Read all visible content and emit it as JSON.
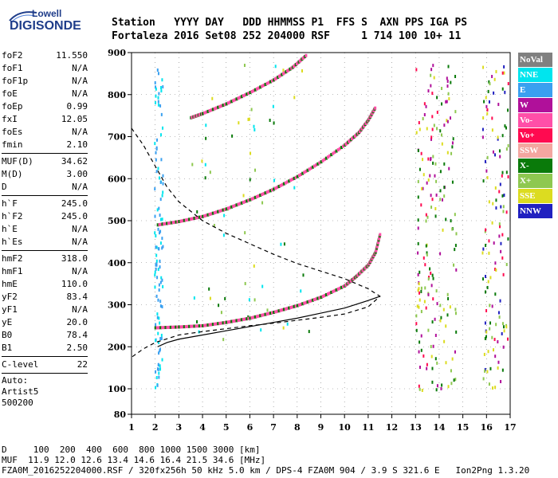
{
  "logo": {
    "line1": "Lowell",
    "line2": "DIGISONDE"
  },
  "header": {
    "line1": "Station   YYYY DAY   DDD HHMMSS P1  FFS S  AXN PPS IGA PS",
    "line2": "Fortaleza 2016 Set08 252 204000 RSF     1 714 100 10+ 11"
  },
  "params": [
    {
      "k": "foF2",
      "v": "11.550"
    },
    {
      "k": "foF1",
      "v": "N/A"
    },
    {
      "k": "foF1p",
      "v": "N/A"
    },
    {
      "k": "foE",
      "v": "N/A"
    },
    {
      "k": "foEp",
      "v": "0.99"
    },
    {
      "k": "fxI",
      "v": "12.05"
    },
    {
      "k": "foEs",
      "v": "N/A"
    },
    {
      "k": "fmin",
      "v": "2.10"
    },
    {
      "sep": true
    },
    {
      "k": "MUF(D)",
      "v": "34.62"
    },
    {
      "k": "M(D)",
      "v": "3.00"
    },
    {
      "k": "D",
      "v": "N/A"
    },
    {
      "sep": true
    },
    {
      "k": "h`F",
      "v": "245.0"
    },
    {
      "k": "h`F2",
      "v": "245.0"
    },
    {
      "k": "h`E",
      "v": "N/A"
    },
    {
      "k": "h`Es",
      "v": "N/A"
    },
    {
      "sep": true
    },
    {
      "k": "hmF2",
      "v": "318.0"
    },
    {
      "k": "hmF1",
      "v": "N/A"
    },
    {
      "k": "hmE",
      "v": "110.0"
    },
    {
      "k": "yF2",
      "v": "83.4"
    },
    {
      "k": "yF1",
      "v": "N/A"
    },
    {
      "k": "yE",
      "v": "20.0"
    },
    {
      "k": "B0",
      "v": "78.4"
    },
    {
      "k": "B1",
      "v": "2.50"
    },
    {
      "sep": true
    },
    {
      "k": "C-level",
      "v": "22"
    },
    {
      "sep": true
    }
  ],
  "misc": {
    "auto": "Auto:",
    "artist": "Artist5",
    "code": "500200"
  },
  "legend": [
    {
      "label": "NoVal",
      "color": "#808080"
    },
    {
      "label": "NNE",
      "color": "#00e5ee"
    },
    {
      "label": "E",
      "color": "#3aa0f0"
    },
    {
      "label": "W",
      "color": "#b0109a"
    },
    {
      "label": "Vo-",
      "color": "#ff4fa8"
    },
    {
      "label": "Vo+",
      "color": "#ff0a50"
    },
    {
      "label": "SSW",
      "color": "#f4a6a0"
    },
    {
      "label": "X-",
      "color": "#0a7a0a"
    },
    {
      "label": "X+",
      "color": "#8ec850"
    },
    {
      "label": "SSE",
      "color": "#dcdc20"
    },
    {
      "label": "NNW",
      "color": "#2020c0"
    }
  ],
  "footer": {
    "line1": "D     100  200  400  600  800 1000 1500 3000 [km]",
    "line2": "MUF  11.9 12.0 12.6 13.4 14.6 16.4 21.5 34.6 [MHz]",
    "line3": "FZA0M_2016252204000.RSF / 320fx256h 50 kHz 5.0 km / DPS-4 FZA0M 904 / 3.9 S 321.6 E   Ion2Png 1.3.20"
  },
  "chart_data": {
    "type": "scatter",
    "xlim": [
      1,
      17
    ],
    "ylim": [
      80,
      900
    ],
    "x_ticks": [
      1,
      2,
      3,
      4,
      5,
      6,
      7,
      8,
      9,
      10,
      11,
      12,
      13,
      14,
      15,
      16,
      17
    ],
    "y_ticks": [
      80,
      100,
      200,
      300,
      400,
      500,
      600,
      700,
      800,
      900
    ],
    "grid": true,
    "series": [
      {
        "color": "#ff4fa8",
        "points": [
          [
            2.0,
            245
          ],
          [
            3,
            247
          ],
          [
            4,
            250
          ],
          [
            5,
            258
          ],
          [
            6,
            268
          ],
          [
            7,
            282
          ],
          [
            8,
            298
          ],
          [
            9,
            318
          ],
          [
            10,
            345
          ],
          [
            10.5,
            368
          ],
          [
            11,
            395
          ],
          [
            11.3,
            425
          ],
          [
            11.5,
            470
          ]
        ]
      },
      {
        "color": "#ff4fa8",
        "points": [
          [
            2.1,
            490
          ],
          [
            3,
            498
          ],
          [
            4,
            510
          ],
          [
            5,
            528
          ],
          [
            6,
            550
          ],
          [
            7,
            575
          ],
          [
            8,
            605
          ],
          [
            9,
            640
          ],
          [
            10,
            680
          ],
          [
            10.6,
            710
          ],
          [
            11.0,
            740
          ],
          [
            11.3,
            770
          ]
        ]
      },
      {
        "color": "#ff4fa8",
        "points": [
          [
            3.5,
            745
          ],
          [
            4,
            755
          ],
          [
            5,
            778
          ],
          [
            6,
            805
          ],
          [
            7,
            835
          ],
          [
            7.8,
            865
          ],
          [
            8.4,
            895
          ]
        ]
      },
      {
        "color": "#000000",
        "style": "solid",
        "points": [
          [
            2.1,
            200
          ],
          [
            2.5,
            210
          ],
          [
            3,
            218
          ],
          [
            4,
            228
          ],
          [
            5,
            238
          ],
          [
            6,
            248
          ],
          [
            7,
            258
          ],
          [
            8,
            268
          ],
          [
            9,
            280
          ],
          [
            10,
            292
          ],
          [
            11,
            310
          ],
          [
            11.5,
            320
          ]
        ]
      },
      {
        "color": "#000000",
        "style": "dashed",
        "points": [
          [
            1,
            720
          ],
          [
            1.5,
            680
          ],
          [
            2,
            630
          ],
          [
            2.5,
            580
          ],
          [
            3,
            545
          ],
          [
            4,
            500
          ],
          [
            5,
            470
          ],
          [
            6,
            445
          ],
          [
            7,
            420
          ],
          [
            8,
            398
          ],
          [
            9,
            380
          ],
          [
            10,
            362
          ],
          [
            11,
            338
          ],
          [
            11.5,
            320
          ],
          [
            11,
            295
          ],
          [
            10,
            278
          ],
          [
            9,
            270
          ],
          [
            8,
            263
          ],
          [
            7,
            256
          ],
          [
            6,
            250
          ],
          [
            5,
            243
          ],
          [
            4,
            236
          ],
          [
            3,
            228
          ],
          [
            2,
            210
          ],
          [
            1.5,
            195
          ],
          [
            1,
            175
          ]
        ]
      }
    ]
  }
}
